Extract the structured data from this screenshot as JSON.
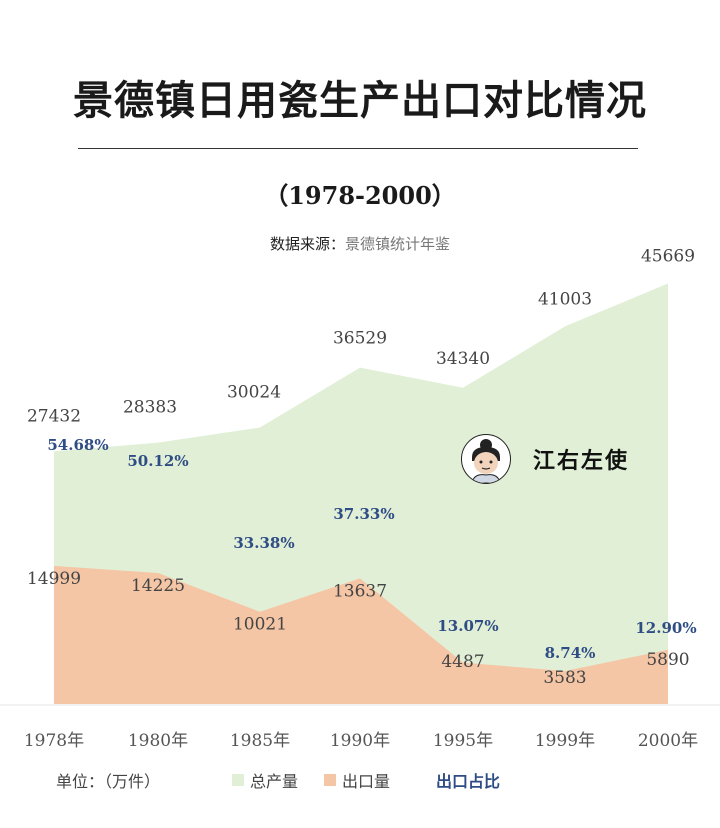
{
  "header": {
    "title": "景德镇日用瓷生产出口对比情况",
    "subtitle": "（1978-2000）",
    "source_label": "数据来源：",
    "source_value": "景德镇统计年鉴"
  },
  "brand": {
    "name": "江右左使"
  },
  "legend": {
    "unit": "单位：（万件）",
    "total": "总产量",
    "export": "出口量",
    "ratio": "出口占比"
  },
  "colors": {
    "total_fill": "#e1efd6",
    "export_fill": "#f5c6a5",
    "ratio_text": "#2f4d85",
    "value_text": "#444444"
  },
  "chart_data": {
    "type": "area",
    "categories": [
      "1978年",
      "1980年",
      "1985年",
      "1990年",
      "1995年",
      "1999年",
      "2000年"
    ],
    "series": [
      {
        "name": "总产量",
        "values": [
          27432,
          28383,
          30024,
          36529,
          34340,
          41003,
          45669
        ]
      },
      {
        "name": "出口量",
        "values": [
          14999,
          14225,
          10021,
          13637,
          4487,
          3583,
          5890
        ]
      }
    ],
    "ratio": {
      "name": "出口占比",
      "labels": [
        "54.68%",
        "50.12%",
        "33.38%",
        "37.33%",
        "13.07%",
        "8.74%",
        "12.90%"
      ]
    },
    "ylim": [
      0,
      48000
    ],
    "grid": false,
    "legend": "bottom"
  }
}
